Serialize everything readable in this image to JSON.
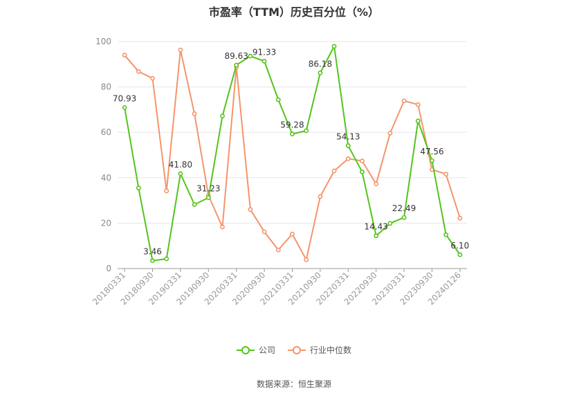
{
  "chart_data": {
    "type": "line",
    "title": "市盈率（TTM）历史百分位（%）",
    "source": "数据来源：恒生聚源",
    "ylim": [
      0,
      100
    ],
    "yticks": [
      0,
      20,
      40,
      60,
      80,
      100
    ],
    "grid": true,
    "legend_position": "bottom",
    "x_tick_labels": [
      "20180331",
      "20180930",
      "20190331",
      "20190930",
      "20200331",
      "20200930",
      "20210331",
      "20210930",
      "20220331",
      "20220930",
      "20230331",
      "20230930",
      "20240126"
    ],
    "series": [
      {
        "name": "公司",
        "color": "#52c41a",
        "values": [
          70.93,
          35.5,
          3.46,
          4.3,
          41.8,
          28.2,
          31.23,
          67.2,
          89.63,
          93.6,
          91.33,
          74.4,
          59.28,
          60.7,
          86.18,
          97.9,
          54.13,
          42.6,
          14.43,
          19.9,
          22.49,
          65.0,
          47.56,
          14.9,
          6.1
        ],
        "labels": [
          "70.93",
          "",
          "3.46",
          "",
          "41.80",
          "",
          "31.23",
          "",
          "89.63",
          "",
          "91.33",
          "",
          "59.28",
          "",
          "86.18",
          "",
          "54.13",
          "",
          "14.43",
          "",
          "22.49",
          "",
          "47.56",
          "",
          "6.10"
        ]
      },
      {
        "name": "行业中位数",
        "color": "#f4946a",
        "values": [
          94.0,
          86.8,
          83.8,
          34.2,
          96.3,
          68.2,
          32.2,
          18.3,
          88.7,
          26.0,
          16.2,
          8.2,
          15.2,
          3.9,
          31.7,
          43.0,
          48.4,
          47.4,
          37.3,
          59.6,
          73.9,
          72.2,
          43.6,
          41.6,
          22.2
        ]
      }
    ]
  }
}
